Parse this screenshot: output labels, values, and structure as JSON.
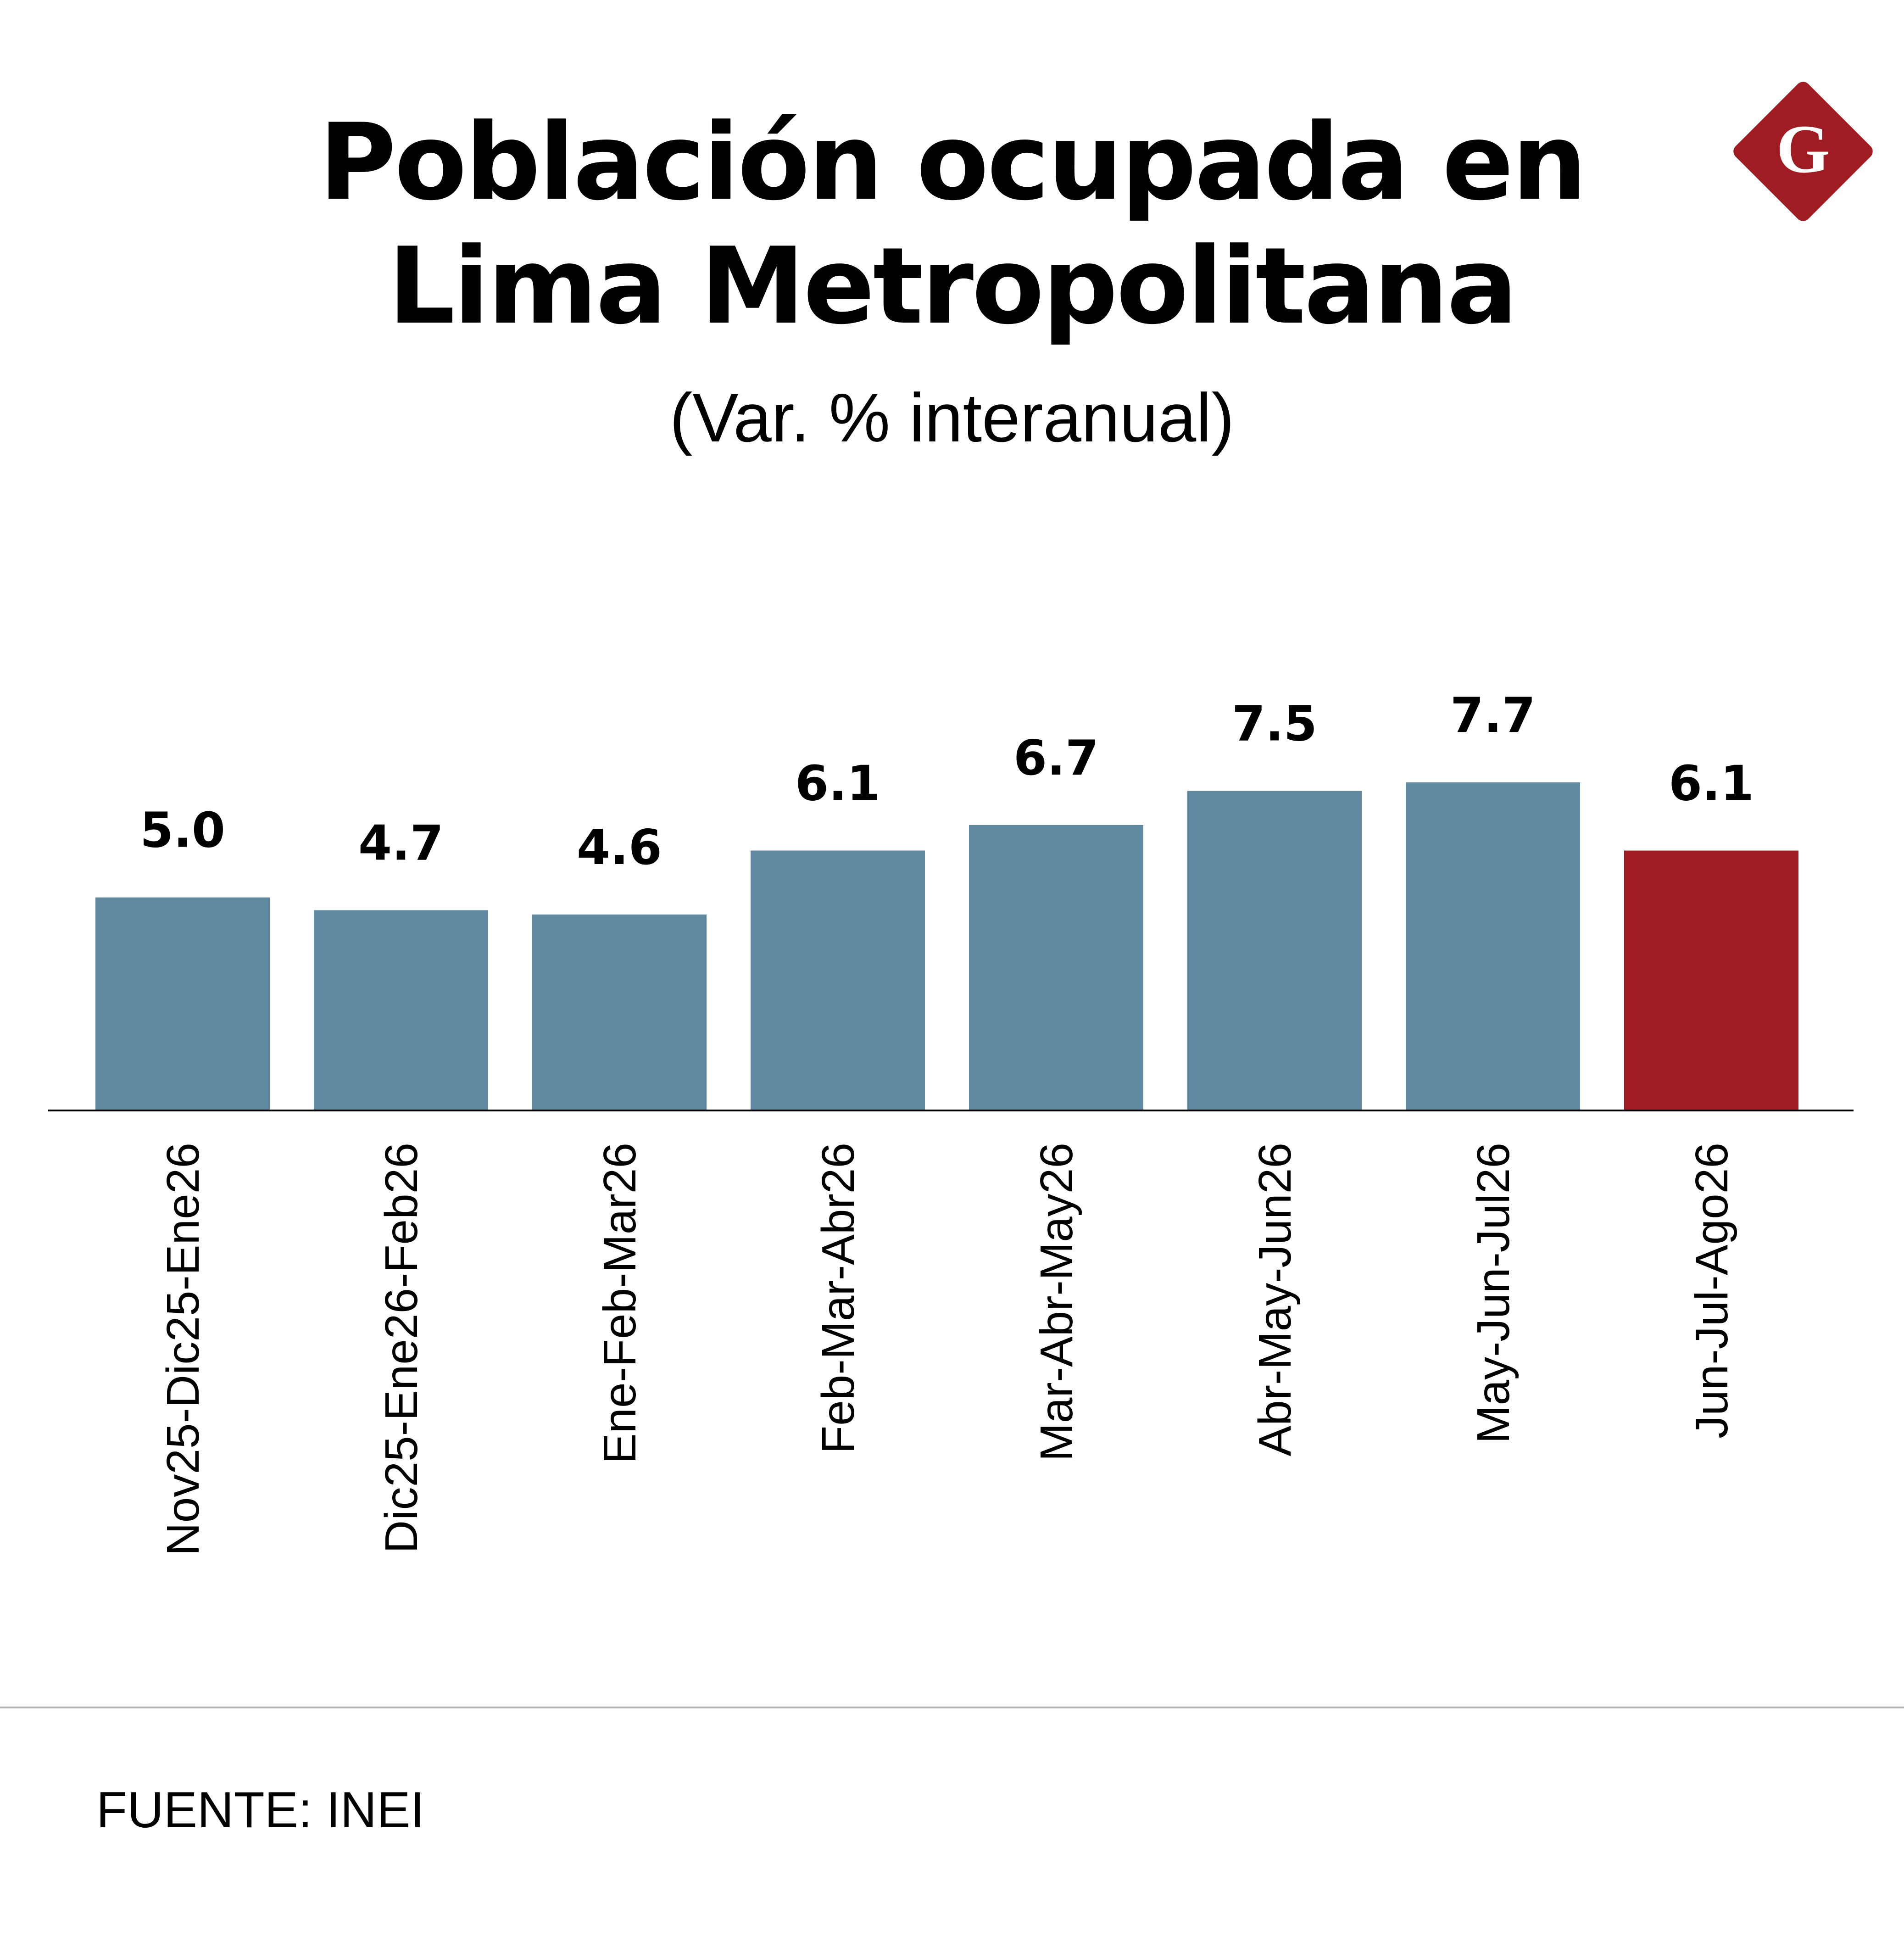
{
  "header": {
    "title_line1": "Población ocupada en",
    "title_line2": "Lima Metropolitana",
    "subtitle": "(Var. % interanual)"
  },
  "logo": {
    "icon": "diamond-g-logo",
    "letter": "G",
    "color": "#9f1c22"
  },
  "colors": {
    "default_bar": "#5f88a1",
    "highlight_bar": "#9f1c22",
    "baseline": "#000000"
  },
  "chart_data": {
    "type": "bar",
    "title": "Población ocupada en Lima Metropolitana",
    "subtitle": "(Var. % interanual)",
    "categories": [
      "Nov25-Dic25-Ene26",
      "Dic25-Ene26-Feb26",
      "Ene-Feb-Mar26",
      "Feb-Mar-Abr26",
      "Mar-Abr-May26",
      "Abr-May-Jun26",
      "May-Jun-Jul26",
      "Jun-Jul-Ago26"
    ],
    "values": [
      5.0,
      4.7,
      4.6,
      6.1,
      6.7,
      7.5,
      7.7,
      6.1
    ],
    "value_labels": [
      "5.0",
      "4.7",
      "4.6",
      "6.1",
      "6.7",
      "7.5",
      "7.7",
      "6.1"
    ],
    "highlight_index": 7,
    "xlabel": "",
    "ylabel": "",
    "ylim": [
      0,
      7.7
    ],
    "grid": false,
    "legend": "none"
  },
  "footer": {
    "source": "FUENTE: INEI"
  }
}
